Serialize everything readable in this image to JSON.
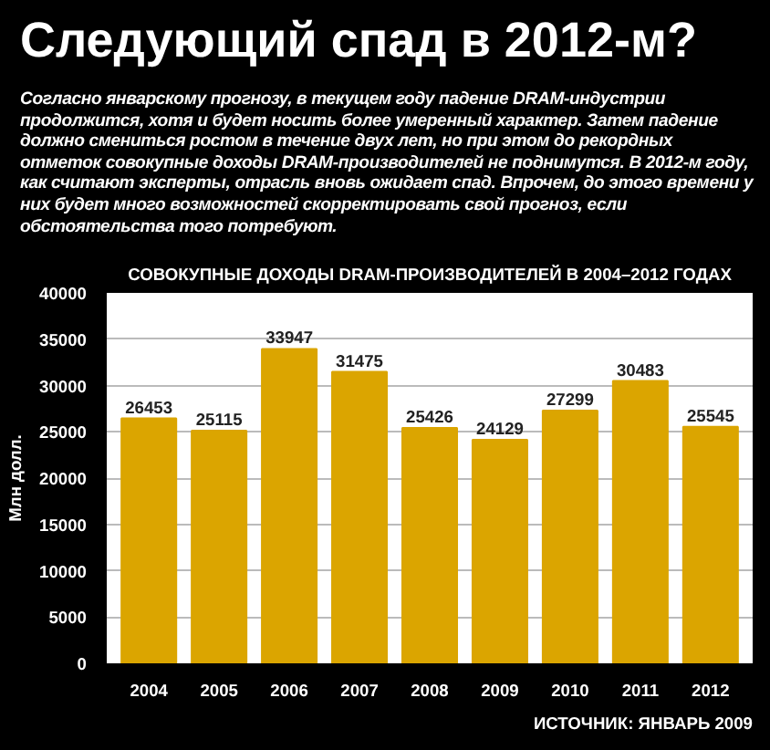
{
  "chart_data": {
    "type": "bar",
    "title": "Следующий спад в 2012-м?",
    "subtitle": "Согласно январскому прогнозу, в текущем году падение DRAM-индустрии продолжится, хотя и будет носить более умеренный характер. Затем падение должно смениться ростом в течение двух лет, но при этом до рекордных отметок совокупные доходы DRAM-производителей не поднимутся. В 2012-м году, как считают эксперты, отрасль вновь ожидает спад. Впрочем, до этого времени у них будет много возможностей скорректировать свой прогноз, если обстоятельства того потребуют.",
    "annotations": [
      "СОВОКУПНЫЕ ДОХОДЫ DRAM-ПРОИЗВОДИТЕЛЕЙ В 2004–2012 ГОДАХ",
      "ИСТОЧНИК: ЯНВАРЬ 2009"
    ],
    "ylabel": "Млн долл.",
    "categories": [
      "2004",
      "2005",
      "2006",
      "2007",
      "2008",
      "2009",
      "2010",
      "2011",
      "2012"
    ],
    "values": [
      26453,
      25115,
      33947,
      31475,
      25426,
      24129,
      27299,
      30483,
      25545
    ],
    "color": "#dba500",
    "data_labels": true,
    "ylim": [
      0,
      40000
    ],
    "yticks": [
      0,
      5000,
      10000,
      15000,
      20000,
      25000,
      30000,
      35000,
      40000
    ],
    "grid": "y"
  }
}
